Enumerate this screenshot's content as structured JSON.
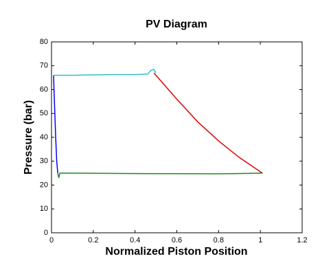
{
  "chart_data": {
    "type": "line",
    "title": "PV Diagram",
    "x_label": "Normalized Piston Position",
    "y_label": "Pressure (bar)",
    "xlim": [
      0,
      1.2
    ],
    "xticks": [
      0,
      0.2,
      0.4,
      0.6,
      0.8,
      1,
      1.2
    ],
    "ylim": [
      0,
      80
    ],
    "yticks": [
      0,
      10,
      20,
      30,
      40,
      50,
      60,
      70,
      80
    ],
    "grid": false,
    "series": [
      {
        "color": "#0000ff",
        "x": [
          0.01,
          0.012,
          0.016,
          0.02,
          0.025,
          0.03
        ],
        "values": [
          66,
          60,
          50,
          40,
          30,
          25
        ]
      },
      {
        "color": "#33c0c0",
        "x": [
          0.01,
          0.1,
          0.2,
          0.3,
          0.4,
          0.46,
          0.475,
          0.49,
          0.5
        ],
        "values": [
          66,
          66,
          66.2,
          66.3,
          66.3,
          66.5,
          68,
          68.5,
          67
        ]
      },
      {
        "color": "#e00000",
        "x": [
          0.49,
          0.55,
          0.6,
          0.7,
          0.8,
          0.9,
          1.01
        ],
        "values": [
          67,
          61,
          56,
          46.5,
          38.5,
          31.5,
          25
        ]
      },
      {
        "color": "#1a8a1a",
        "x": [
          0.03,
          0.035,
          0.04,
          0.1,
          0.5,
          0.8,
          1.01
        ],
        "values": [
          25,
          23,
          25,
          25,
          24.8,
          24.7,
          25
        ]
      }
    ]
  }
}
